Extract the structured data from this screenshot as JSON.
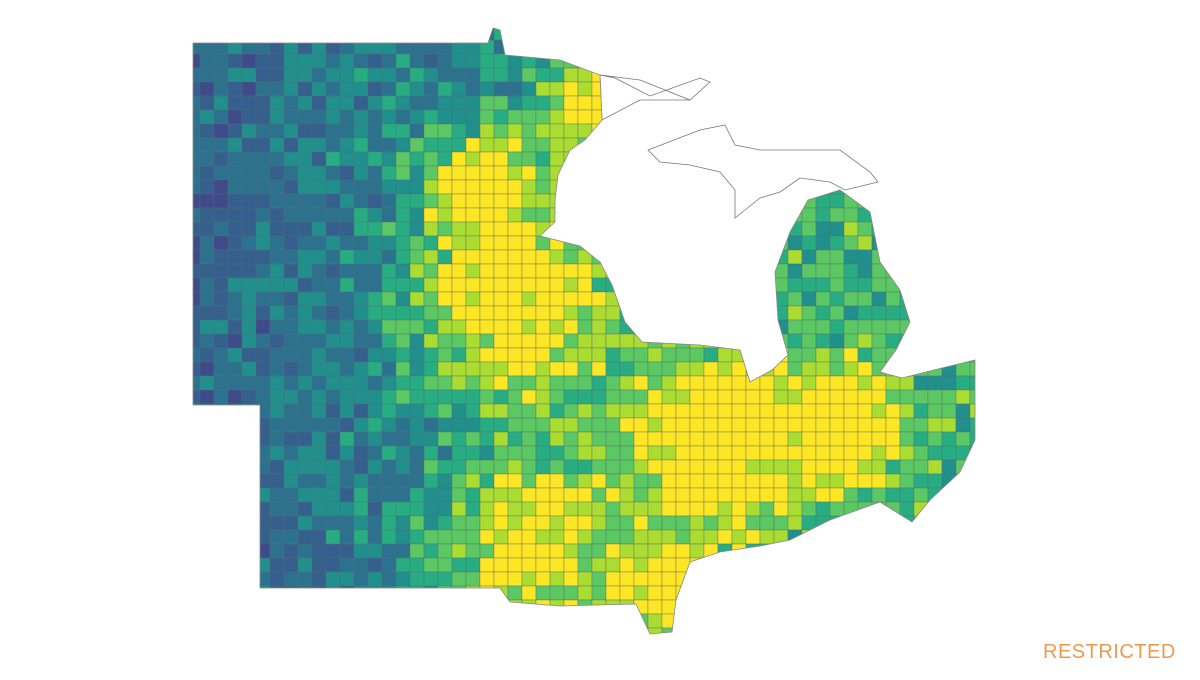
{
  "watermark": {
    "text": "RESTRICTED"
  }
}
